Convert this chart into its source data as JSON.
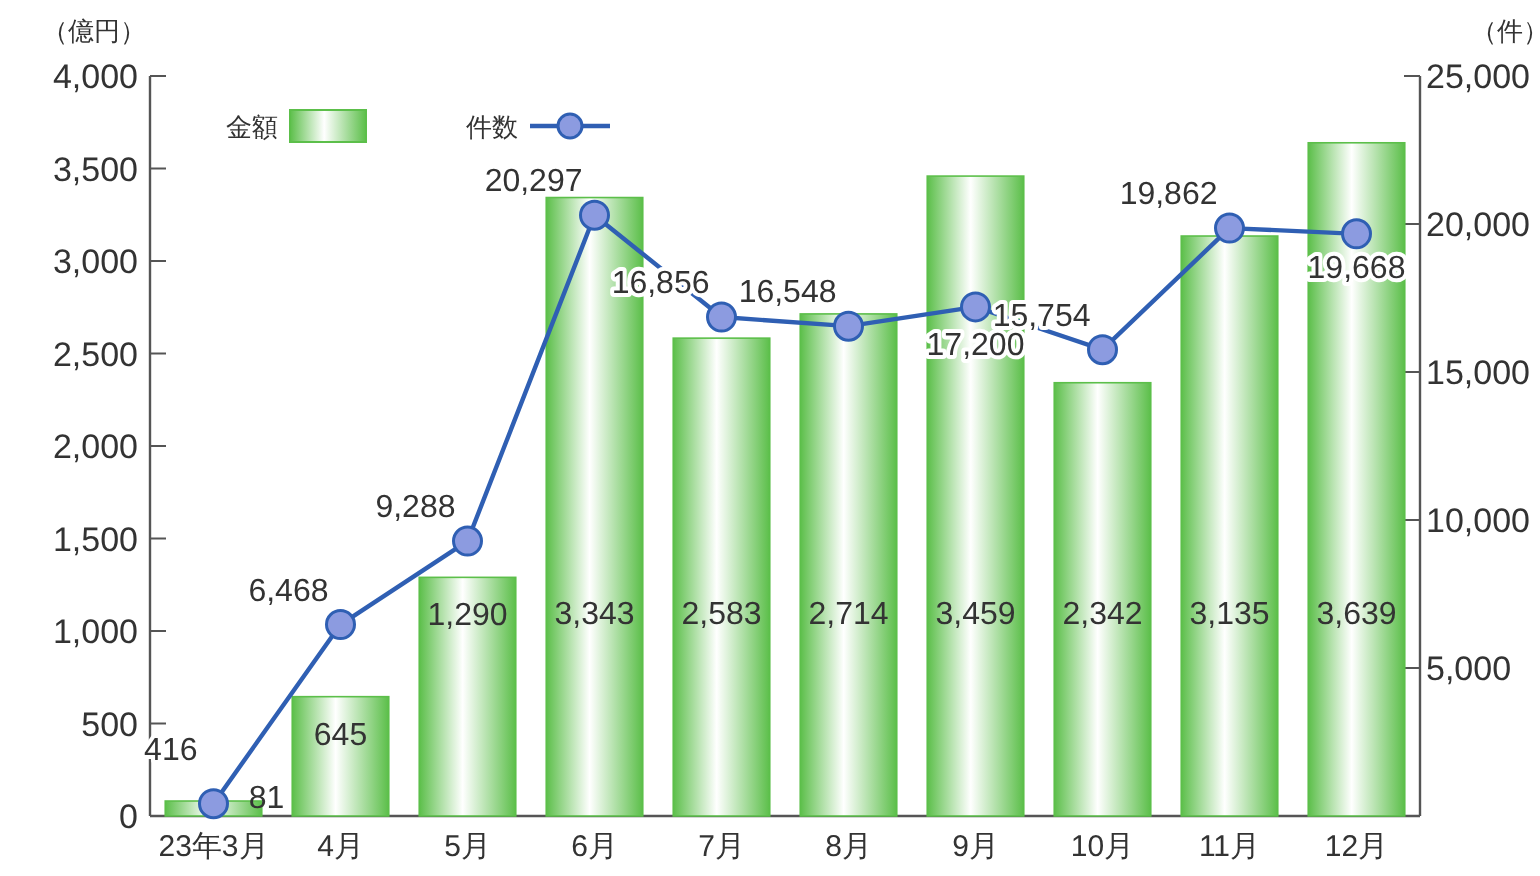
{
  "chart_data": {
    "type": "bar",
    "ylabel": "（億円）",
    "y2label": "（件）",
    "categories": [
      "23年3月",
      "4月",
      "5月",
      "6月",
      "7月",
      "8月",
      "9月",
      "10月",
      "11月",
      "12月"
    ],
    "series": [
      {
        "name": "金額",
        "color": "#5cbf4a",
        "values": [
          81,
          645,
          1290,
          3343,
          2583,
          2714,
          3459,
          2342,
          3135,
          3639
        ],
        "value_labels": [
          "81",
          "645",
          "1,290",
          "3,343",
          "2,583",
          "2,714",
          "3,459",
          "2,342",
          "3,135",
          "3,639"
        ]
      },
      {
        "name": "件数",
        "type": "line",
        "axis": "y2",
        "color": "#2f5fb3",
        "marker": "circle",
        "values": [
          416,
          6468,
          9288,
          20297,
          16856,
          16548,
          17200,
          15754,
          19862,
          19668
        ],
        "value_labels": [
          "416",
          "6,468",
          "9,288",
          "20,297",
          "16,856",
          "16,548",
          "17,200",
          "15,754",
          "19,862",
          "19,668"
        ]
      }
    ],
    "ylim": [
      0,
      4000
    ],
    "yticks": [
      {
        "value": 0,
        "label": "0"
      },
      {
        "value": 500,
        "label": "500"
      },
      {
        "value": 1000,
        "label": "1,000"
      },
      {
        "value": 1500,
        "label": "1,500"
      },
      {
        "value": 2000,
        "label": "2,000"
      },
      {
        "value": 2500,
        "label": "2,500"
      },
      {
        "value": 3000,
        "label": "3,000"
      },
      {
        "value": 3500,
        "label": "3,500"
      },
      {
        "value": 4000,
        "label": "4,000"
      }
    ],
    "y2lim": [
      0,
      25000
    ],
    "y2ticks": [
      {
        "value": 5000,
        "label": "5,000"
      },
      {
        "value": 10000,
        "label": "10,000"
      },
      {
        "value": 15000,
        "label": "15,000"
      },
      {
        "value": 20000,
        "label": "20,000"
      },
      {
        "value": 25000,
        "label": "25,000"
      }
    ],
    "grid": false,
    "legend": "top left"
  }
}
